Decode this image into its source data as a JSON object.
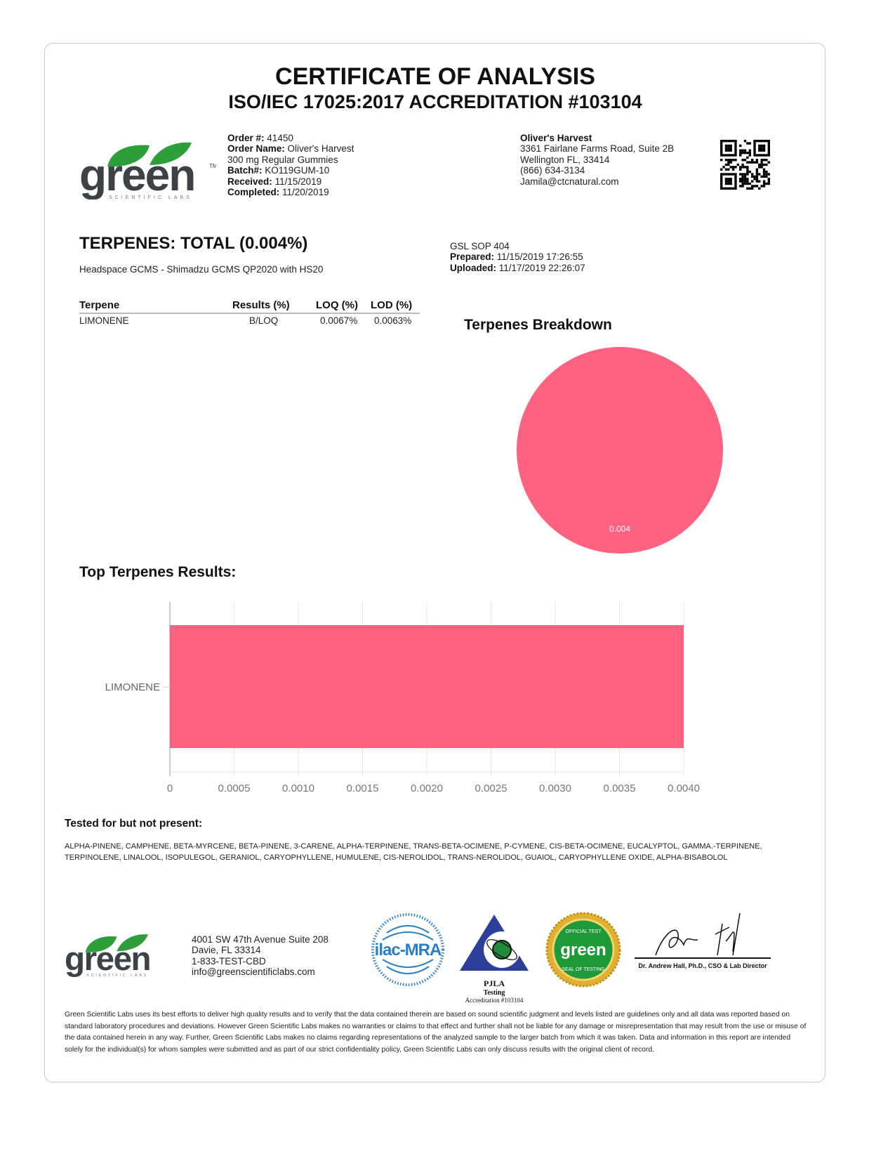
{
  "header": {
    "title": "CERTIFICATE OF ANALYSIS",
    "subtitle": "ISO/IEC 17025:2017 ACCREDITATION #103104"
  },
  "logo": {
    "text": "green",
    "tagline": "SCIENTIFIC LABS",
    "tm": "™",
    "color": "#2e9e3a"
  },
  "order": {
    "order_no_label": "Order #:",
    "order_no": "41450",
    "order_name_label": "Order Name:",
    "order_name": "Oliver's Harvest",
    "product": "300 mg Regular Gummies",
    "batch_label": "Batch#:",
    "batch": "KO119GUM-10",
    "received_label": "Received:",
    "received": "11/15/2019",
    "completed_label": "Completed:",
    "completed": "11/20/2019"
  },
  "client": {
    "name": "Oliver's Harvest",
    "address1": "3361 Fairlane Farms Road, Suite 2B",
    "address2": "Wellington FL, 33414",
    "phone": "(866) 634-3134",
    "email": "Jamila@ctcnatural.com"
  },
  "section": {
    "title": "TERPENES: TOTAL (0.004%)",
    "method": "Headspace GCMS - Shimadzu GCMS QP2020 with HS20",
    "sop": "GSL SOP 404",
    "prepared_label": "Prepared:",
    "prepared": "11/15/2019 17:26:55",
    "uploaded_label": "Uploaded:",
    "uploaded": "11/17/2019 22:26:07"
  },
  "table": {
    "headers": [
      "Terpene",
      "Results (%)",
      "LOQ (%)",
      "LOD (%)"
    ],
    "rows": [
      [
        "LIMONENE",
        "B/LOQ",
        "0.0067%",
        "0.0063%"
      ]
    ]
  },
  "chart_data": [
    {
      "type": "pie",
      "title": "Terpenes Breakdown",
      "categories": [
        "LIMONENE"
      ],
      "values": [
        0.004
      ],
      "data_labels": [
        "0.004"
      ],
      "colors": [
        "#ff6281"
      ]
    },
    {
      "type": "bar",
      "orientation": "horizontal",
      "title": "Top Terpenes Results:",
      "categories": [
        "LIMONENE"
      ],
      "values": [
        0.004
      ],
      "xlim": [
        0,
        0.004
      ],
      "ticks": [
        "0",
        "0.0005",
        "0.0010",
        "0.0015",
        "0.0020",
        "0.0025",
        "0.0030",
        "0.0035",
        "0.0040"
      ],
      "grid": true,
      "colors": [
        "#ff6281"
      ]
    }
  ],
  "not_present": {
    "title": "Tested for but not present:",
    "line1": "ALPHA-PINENE, CAMPHENE, BETA-MYRCENE, BETA-PINENE, 3-CARENE, ALPHA-TERPINENE, TRANS-BETA-OCIMENE, P-CYMENE, CIS-BETA-OCIMENE, EUCALYPTOL, GAMMA.-TERPINENE,",
    "line2": "TERPINOLENE, LINALOOL, ISOPULEGOL, GERANIOL, CARYOPHYLLENE, HUMULENE, CIS-NEROLIDOL, TRANS-NEROLIDOL, GUAIOL, CARYOPHYLLENE OXIDE, ALPHA-BISABOLOL"
  },
  "footer": {
    "address1": "4001 SW 47th Avenue Suite 208",
    "address2": "Davie, FL 33314",
    "phone": "1-833-TEST-CBD",
    "email": "info@greenscientificlabs.com",
    "ilac": "ilac-MRA",
    "pjla": "PJLA",
    "pjla_sub": "Testing",
    "pjla_acc": "Accreditation #103104",
    "seal_top": "OFFICIAL TEST",
    "seal_bottom": "SEAL OF TESTING",
    "signer": "Dr. Andrew Hall, Ph.D., CSO & Lab Director",
    "disclaimer": "Green Scientific Labs uses its best efforts to deliver high quality results and to verify that the data contained therein are based on sound scientific judgment and levels listed are guidelines only and all data was reported based on standard laboratory procedures and deviations. However Green Scientific Labs makes no warranties or claims to that effect and further shall not be liable for any damage or misrepresentation that may result from the use or misuse of the data contained herein in any way. Further, Green Scientific Labs makes no claims regarding representations of the analyzed sample to the larger batch from which it was taken. Data and information in this report are intended solely for the individual(s) for whom samples were submitted and as part of our strict confidentiality policy, Green Scientific Labs can only discuss results with the original client of record."
  }
}
